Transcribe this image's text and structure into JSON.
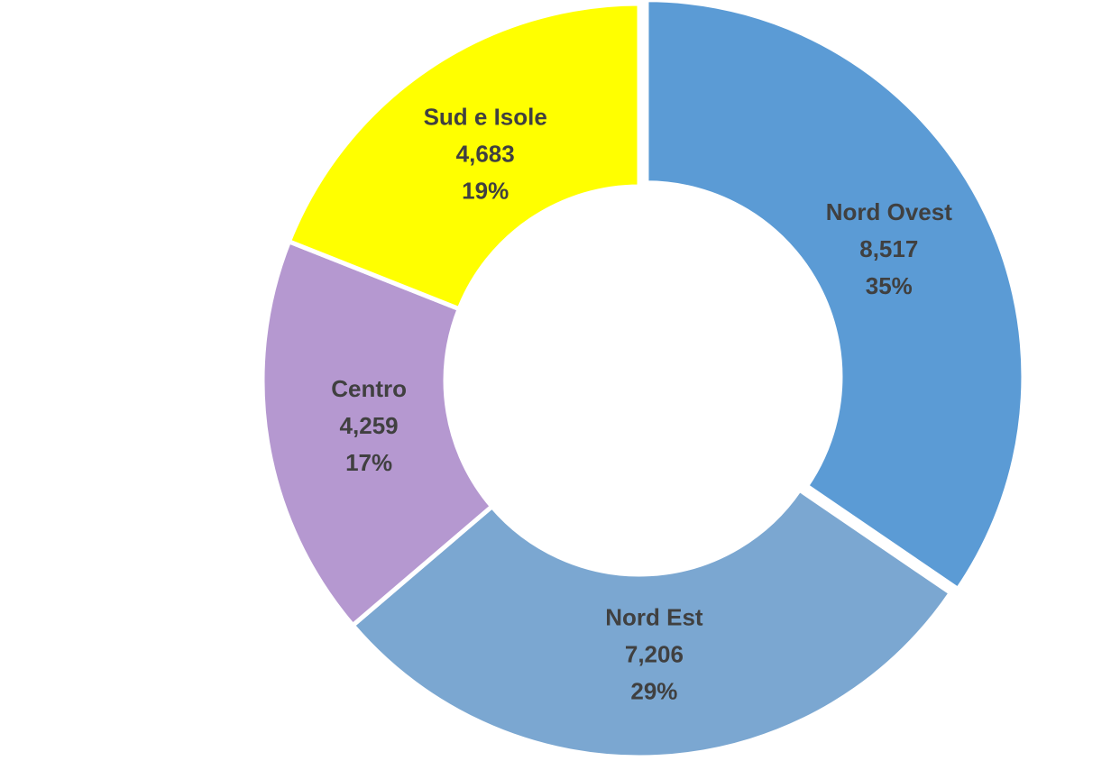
{
  "chart_data": {
    "type": "pie",
    "variant": "donut",
    "title": "",
    "legend": "none",
    "slices": [
      {
        "label": "Nord Ovest",
        "value": 8517,
        "value_label": "8,517",
        "percent_label": "35%",
        "color": "#5B9BD5",
        "offset": true
      },
      {
        "label": "Nord Est",
        "value": 7206,
        "value_label": "7,206",
        "percent_label": "29%",
        "color": "#7BA7D1",
        "offset": false
      },
      {
        "label": "Centro",
        "value": 4259,
        "value_label": "4,259",
        "percent_label": "17%",
        "color": "#B598D0",
        "offset": false
      },
      {
        "label": "Sud e Isole",
        "value": 4683,
        "value_label": "4,683",
        "percent_label": "19%",
        "color": "#FFFF00",
        "offset": false
      }
    ]
  }
}
